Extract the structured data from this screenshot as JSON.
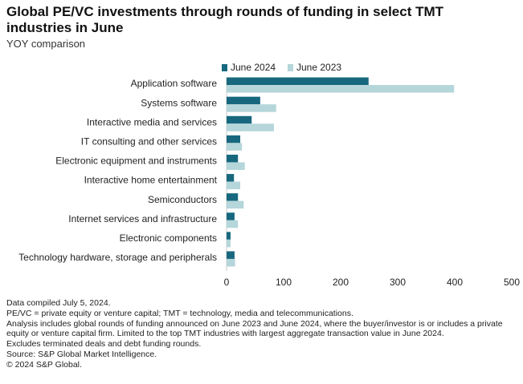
{
  "chart_data": {
    "type": "hbar",
    "title": "Global PE/VC investments through rounds of funding in select TMT industries in June",
    "subtitle": "YOY comparison",
    "categories": [
      "Application software",
      "Systems software",
      "Interactive media and services",
      "IT consulting and other services",
      "Electronic equipment and instruments",
      "Interactive home entertainment",
      "Semiconductors",
      "Internet services and infrastructure",
      "Electronic components",
      "Technology hardware, storage and peripherals"
    ],
    "series": [
      {
        "name": "June 2024",
        "color": "#17687e",
        "values": [
          249,
          59,
          44,
          24,
          20,
          13,
          20,
          14,
          7,
          14
        ]
      },
      {
        "name": "June 2023",
        "color": "#b5d6da",
        "values": [
          399,
          87,
          83,
          27,
          32,
          24,
          30,
          20,
          7,
          15
        ]
      }
    ],
    "xlim": [
      0,
      500
    ],
    "xticks": [
      0,
      100,
      200,
      300,
      400,
      500
    ],
    "grid": false,
    "notes": [
      "Data compiled July 5, 2024.",
      "PE/VC = private equity or venture capital; TMT = technology, media and telecommunications.",
      "Analysis includes global rounds of funding announced on June 2023 and June 2024, where the buyer/investor is or includes a private equity or venture capital firm. Limited to the top TMT industries with largest aggregate transaction value in June 2024.",
      "Excludes terminated deals and debt funding rounds.",
      "Source: S&P Global Market Intelligence.",
      "© 2024 S&P Global."
    ]
  }
}
